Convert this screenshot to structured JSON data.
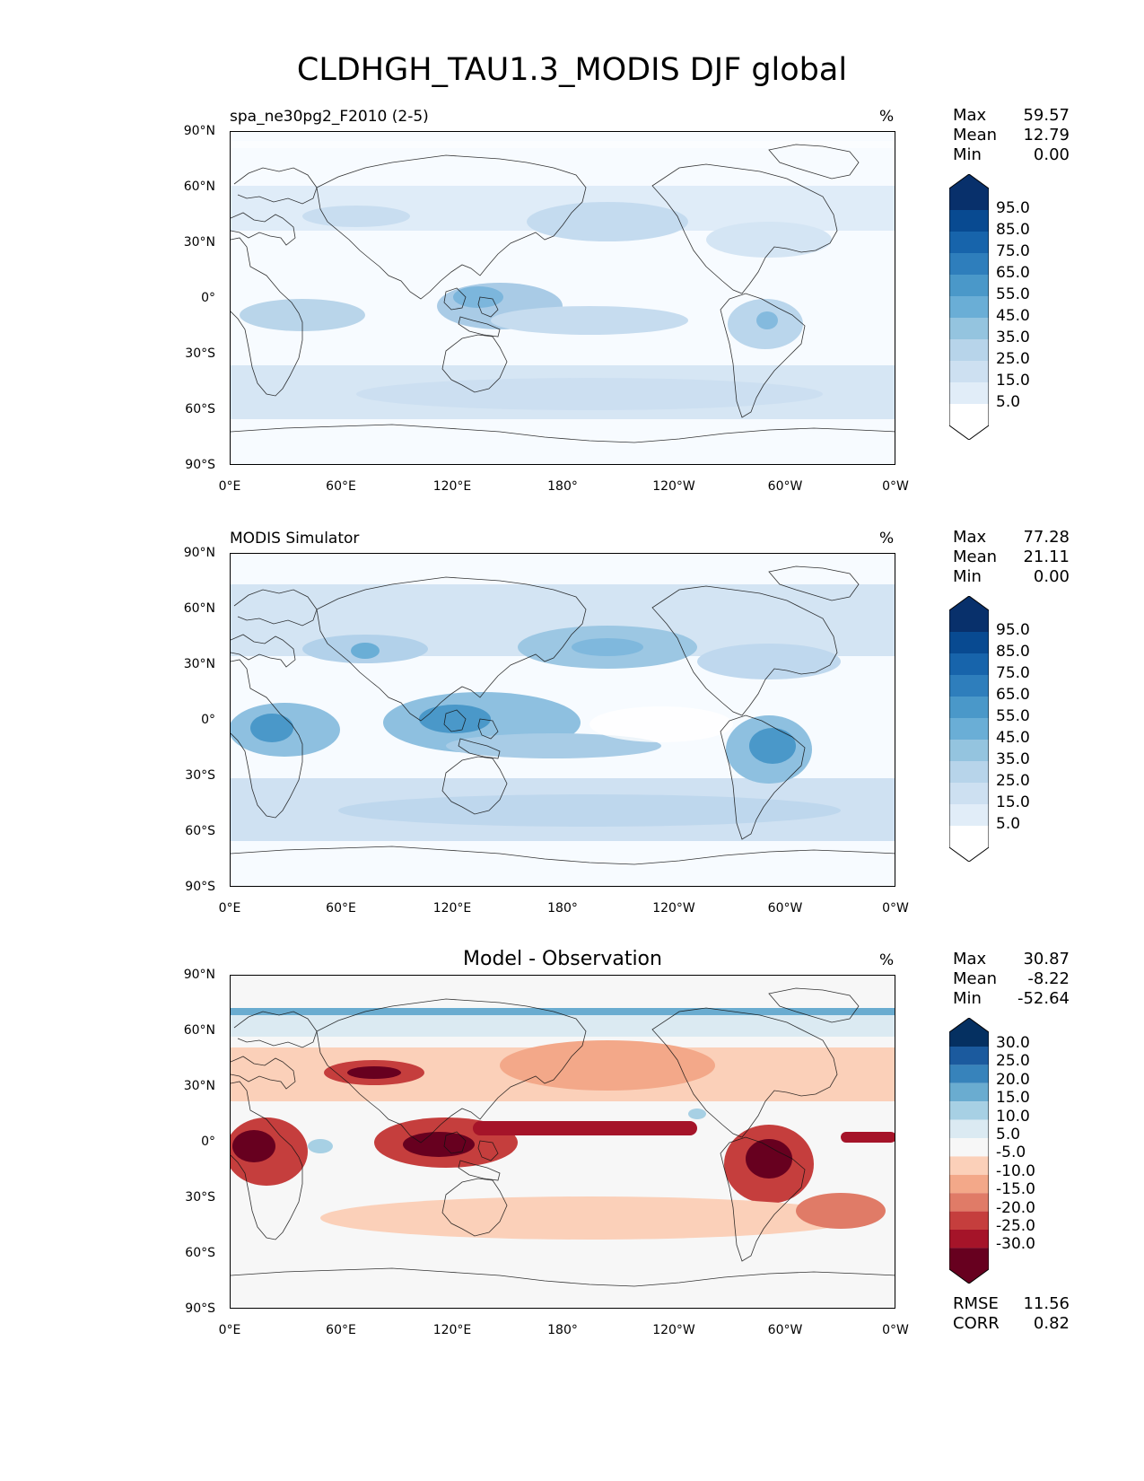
{
  "main_title": "CLDHGH_TAU1.3_MODIS DJF global",
  "axes": {
    "lat_labels": [
      "90°N",
      "60°N",
      "30°N",
      "0°",
      "30°S",
      "60°S",
      "90°S"
    ],
    "lon_labels": [
      "0°E",
      "60°E",
      "120°E",
      "180°",
      "120°W",
      "60°W",
      "0°W"
    ]
  },
  "panels": [
    {
      "subtitle": "spa_ne30pg2_F2010 (2-5)",
      "title": "",
      "units": "%",
      "stats": [
        {
          "label": "Max",
          "value": "59.57"
        },
        {
          "label": "Mean",
          "value": "12.79"
        },
        {
          "label": "Min",
          "value": "0.00"
        }
      ],
      "colorbar": {
        "colors": [
          "#f7fbff",
          "#e1edf8",
          "#cde0f1",
          "#b7d4ea",
          "#94c4df",
          "#6aaed6",
          "#4a98c9",
          "#2e7ebc",
          "#1764ab",
          "#084a91",
          "#08306b"
        ],
        "labels": [
          "95.0",
          "85.0",
          "75.0",
          "65.0",
          "55.0",
          "45.0",
          "35.0",
          "25.0",
          "15.0",
          "5.0"
        ]
      }
    },
    {
      "subtitle": "MODIS Simulator",
      "title": "",
      "units": "%",
      "stats": [
        {
          "label": "Max",
          "value": "77.28"
        },
        {
          "label": "Mean",
          "value": "21.11"
        },
        {
          "label": "Min",
          "value": "0.00"
        }
      ],
      "colorbar": {
        "colors": [
          "#f7fbff",
          "#e1edf8",
          "#cde0f1",
          "#b7d4ea",
          "#94c4df",
          "#6aaed6",
          "#4a98c9",
          "#2e7ebc",
          "#1764ab",
          "#084a91",
          "#08306b"
        ],
        "labels": [
          "95.0",
          "85.0",
          "75.0",
          "65.0",
          "55.0",
          "45.0",
          "35.0",
          "25.0",
          "15.0",
          "5.0"
        ]
      }
    },
    {
      "subtitle": "",
      "title": "Model - Observation",
      "units": "%",
      "stats": [
        {
          "label": "Max",
          "value": "30.87"
        },
        {
          "label": "Mean",
          "value": "-8.22"
        },
        {
          "label": "Min",
          "value": "-52.64"
        }
      ],
      "colorbar": {
        "colors": [
          "#67001f",
          "#a51429",
          "#c53e3d",
          "#e07b67",
          "#f3a889",
          "#fbd0b9",
          "#f7f7f7",
          "#dbeaf2",
          "#a7d0e4",
          "#6aacd0",
          "#3783bb",
          "#1b5a9e",
          "#053061"
        ],
        "labels": [
          "30.0",
          "25.0",
          "20.0",
          "15.0",
          "10.0",
          "5.0",
          "-5.0",
          "-10.0",
          "-15.0",
          "-20.0",
          "-25.0",
          "-30.0"
        ]
      },
      "bottom_stats": [
        {
          "label": "RMSE",
          "value": "11.56"
        },
        {
          "label": "CORR",
          "value": "0.82"
        }
      ]
    }
  ]
}
